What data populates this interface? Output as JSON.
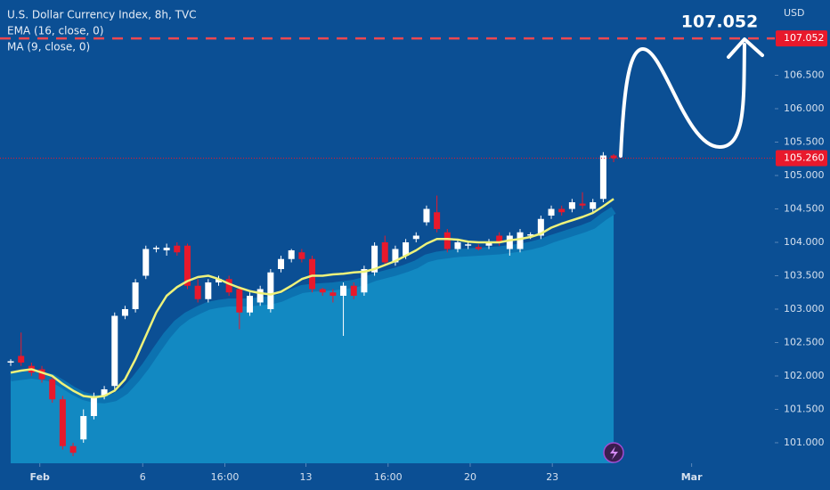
{
  "chart_data": {
    "type": "candlestick",
    "title": "U.S. Dollar Currency Index, 8h, TVC",
    "indicators": [
      "EMA (16, close, 0)",
      "MA (9, close, 0)"
    ],
    "currency": "USD",
    "up_color": "#ffffff",
    "down_color": "#e8192c",
    "open": [
      102.2,
      102.3,
      102.15,
      102.1,
      101.95,
      101.65,
      100.95,
      101.05,
      101.4,
      101.7,
      101.85,
      102.9,
      103.0,
      103.5,
      103.9,
      103.88,
      103.95,
      103.95,
      103.35,
      103.15,
      103.4,
      103.45,
      103.3,
      102.95,
      103.1,
      103.0,
      103.6,
      103.75,
      103.85,
      103.75,
      103.3,
      103.25,
      103.2,
      103.35,
      103.25,
      103.55,
      104.0,
      103.7,
      103.8,
      104.05,
      104.3,
      104.45,
      104.15,
      103.9,
      103.95,
      103.93,
      103.95,
      104.1,
      103.9,
      103.9,
      104.1,
      104.1,
      104.4,
      104.5,
      104.5,
      104.58,
      104.5,
      104.65,
      105.3
    ],
    "high": [
      102.25,
      102.65,
      102.2,
      102.15,
      102.0,
      101.7,
      101.0,
      101.5,
      101.75,
      101.85,
      102.95,
      103.05,
      103.45,
      103.95,
      103.95,
      103.98,
      104.0,
      103.98,
      103.45,
      103.45,
      103.5,
      103.5,
      103.35,
      103.25,
      103.35,
      103.6,
      103.8,
      103.9,
      103.9,
      103.8,
      103.32,
      103.3,
      103.4,
      103.4,
      103.65,
      104.0,
      104.1,
      103.95,
      104.05,
      104.15,
      104.55,
      104.7,
      104.2,
      104.05,
      104.0,
      103.97,
      104.05,
      104.15,
      104.15,
      104.2,
      104.15,
      104.4,
      104.55,
      104.55,
      104.65,
      104.75,
      104.65,
      105.35,
      105.32
    ],
    "low": [
      102.15,
      102.15,
      102.0,
      101.9,
      101.6,
      100.9,
      100.8,
      101.0,
      101.35,
      101.65,
      101.8,
      102.85,
      102.95,
      103.45,
      103.85,
      103.8,
      103.8,
      103.3,
      103.1,
      103.1,
      103.35,
      103.2,
      102.7,
      102.9,
      103.05,
      102.95,
      103.55,
      103.7,
      103.7,
      103.25,
      103.2,
      103.1,
      102.6,
      103.15,
      103.2,
      103.5,
      103.65,
      103.65,
      103.75,
      104.0,
      104.25,
      104.15,
      103.85,
      103.85,
      103.9,
      103.88,
      103.9,
      103.95,
      103.8,
      103.85,
      104.05,
      104.05,
      104.35,
      104.4,
      104.45,
      104.5,
      104.45,
      104.6,
      105.2
    ],
    "close": [
      102.22,
      102.2,
      102.05,
      101.95,
      101.65,
      100.95,
      100.85,
      101.4,
      101.7,
      101.8,
      102.9,
      103.0,
      103.4,
      103.9,
      103.92,
      103.92,
      103.85,
      103.35,
      103.15,
      103.4,
      103.45,
      103.25,
      102.95,
      103.2,
      103.3,
      103.55,
      103.75,
      103.88,
      103.75,
      103.3,
      103.25,
      103.2,
      103.35,
      103.2,
      103.6,
      103.95,
      103.7,
      103.9,
      104.0,
      104.1,
      104.5,
      104.2,
      103.9,
      104.0,
      103.97,
      103.9,
      104.0,
      104.0,
      104.1,
      104.15,
      104.12,
      104.35,
      104.5,
      104.45,
      104.6,
      104.55,
      104.6,
      105.3,
      105.26
    ],
    "series": [
      {
        "name": "EMA (16, close, 0)",
        "color": "#0c72b0",
        "values": [
          101.98,
          102.0,
          102.02,
          102.0,
          101.97,
          101.88,
          101.78,
          101.7,
          101.66,
          101.65,
          101.68,
          101.78,
          101.95,
          102.15,
          102.38,
          102.6,
          102.78,
          102.9,
          102.98,
          103.05,
          103.08,
          103.1,
          103.1,
          103.1,
          103.12,
          103.13,
          103.17,
          103.24,
          103.3,
          103.32,
          103.33,
          103.34,
          103.36,
          103.38,
          103.42,
          103.48,
          103.52,
          103.56,
          103.61,
          103.67,
          103.76,
          103.8,
          103.82,
          103.84,
          103.85,
          103.86,
          103.87,
          103.88,
          103.9,
          103.92,
          103.95,
          103.99,
          104.05,
          104.1,
          104.15,
          104.2,
          104.26,
          104.38,
          104.48
        ]
      },
      {
        "name": "MA (9, close, 0)",
        "color": "#eef27a",
        "values": [
          102.05,
          102.08,
          102.1,
          102.05,
          102.0,
          101.88,
          101.78,
          101.7,
          101.68,
          101.7,
          101.78,
          101.95,
          102.25,
          102.6,
          102.95,
          103.2,
          103.33,
          103.42,
          103.48,
          103.5,
          103.45,
          103.38,
          103.32,
          103.27,
          103.24,
          103.22,
          103.26,
          103.35,
          103.45,
          103.5,
          103.5,
          103.52,
          103.53,
          103.55,
          103.56,
          103.6,
          103.66,
          103.72,
          103.8,
          103.88,
          103.98,
          104.05,
          104.05,
          104.04,
          104.01,
          104.0,
          104.0,
          104.0,
          104.03,
          104.05,
          104.08,
          104.13,
          104.22,
          104.28,
          104.33,
          104.38,
          104.44,
          104.54,
          104.65
        ]
      }
    ],
    "area_color": "#1289c2",
    "ylim": [
      100.693,
      107.627
    ],
    "yticks": [
      {
        "value": 101,
        "label": "101.000"
      },
      {
        "value": 101.5,
        "label": "101.500"
      },
      {
        "value": 102,
        "label": "102.000"
      },
      {
        "value": 102.5,
        "label": "102.500"
      },
      {
        "value": 103,
        "label": "103.000"
      },
      {
        "value": 103.5,
        "label": "103.500"
      },
      {
        "value": 104,
        "label": "104.000"
      },
      {
        "value": 104.5,
        "label": "104.500"
      },
      {
        "value": 105,
        "label": "105.000"
      },
      {
        "value": 105.5,
        "label": "105.500"
      },
      {
        "value": 106,
        "label": "106.000"
      },
      {
        "value": 106.5,
        "label": "106.500"
      }
    ],
    "xlim": [
      -1.03,
      73.5
    ],
    "xticks": [
      {
        "value": 2.8,
        "label": "Feb"
      },
      {
        "value": 12.7,
        "label": "6"
      },
      {
        "value": 20.6,
        "label": "16:00"
      },
      {
        "value": 28.4,
        "label": "13"
      },
      {
        "value": 36.3,
        "label": "16:00"
      },
      {
        "value": 44.2,
        "label": "20"
      },
      {
        "value": 52.1,
        "label": "23"
      },
      {
        "value": 65.5,
        "label": "Mar"
      }
    ],
    "target": {
      "value": 107.052,
      "label": "107.052"
    },
    "last_price": {
      "value": 105.26,
      "label": "105.260"
    }
  }
}
